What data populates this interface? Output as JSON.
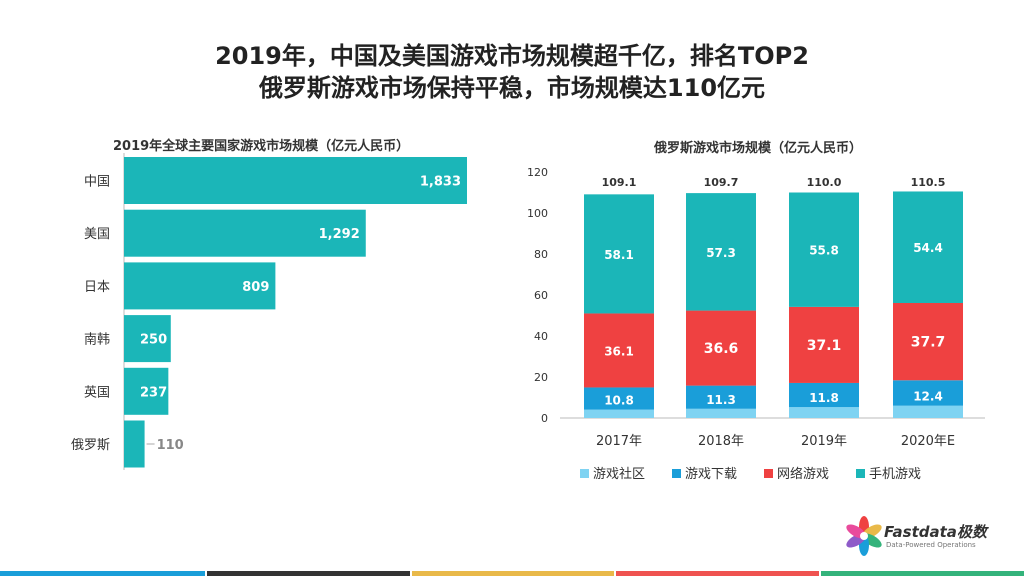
{
  "header": {
    "line1": "2019年，中国及美国游戏市场规模超千亿，排名TOP2",
    "line2": "俄罗斯游戏市场保持平稳，市场规模达110亿元"
  },
  "chart_data": [
    {
      "type": "bar",
      "orientation": "horizontal",
      "title": "2019年全球主要国家游戏市场规模（亿元人民币）",
      "categories": [
        "中国",
        "美国",
        "日本",
        "南韩",
        "英国",
        "俄罗斯"
      ],
      "values": [
        1833,
        1292,
        809,
        250,
        237,
        110
      ],
      "value_labels": [
        "1,833",
        "1,292",
        "809",
        "250",
        "237",
        "110"
      ],
      "color": "#1BB6B8"
    },
    {
      "type": "bar",
      "stacked": true,
      "title": "俄罗斯游戏市场规模（亿元人民币）",
      "categories": [
        "2017年",
        "2018年",
        "2019年",
        "2020年E"
      ],
      "ylim": [
        0,
        120
      ],
      "yticks": [
        0,
        20,
        40,
        60,
        80,
        100,
        120
      ],
      "totals": [
        109.1,
        109.7,
        110.0,
        110.5
      ],
      "total_labels": [
        "109.1",
        "109.7",
        "110.0",
        "110.5"
      ],
      "series": [
        {
          "name": "游戏社区",
          "values": [
            4.1,
            4.5,
            5.3,
            6.0
          ],
          "color": "#7FD3F2"
        },
        {
          "name": "游戏下载",
          "values": [
            10.8,
            11.3,
            11.8,
            12.4
          ],
          "color": "#1A9ED9"
        },
        {
          "name": "网络游戏",
          "values": [
            36.1,
            36.6,
            37.1,
            37.7
          ],
          "color": "#EF4141"
        },
        {
          "name": "手机游戏",
          "values": [
            58.1,
            57.3,
            55.8,
            54.4
          ],
          "color": "#1BB6B8"
        }
      ],
      "legend_position": "bottom"
    }
  ],
  "brand": {
    "name": "Fastdata极数",
    "tagline": "Data-Powered Operations"
  },
  "footer_colors": [
    "#1A9ED9",
    "#333333",
    "#E9B949",
    "#EF5350",
    "#34B37B"
  ]
}
